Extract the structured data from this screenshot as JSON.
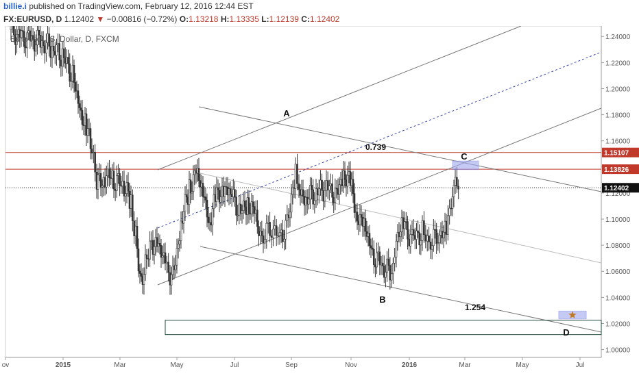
{
  "header": {
    "user": "billie.i",
    "published": " published on TradingView.com, February 12, 2016 12:44 EST"
  },
  "quote": {
    "symbol": "FX:EURUSD, D",
    "last": "1.12402",
    "change": "−0.00816 (−0.72%)",
    "o_label": "O:",
    "o": "1.13218",
    "h_label": "H:",
    "h": "1.13335",
    "l_label": "L:",
    "l": "1.12139",
    "c_label": "C:",
    "c": "1.12402"
  },
  "chart_data": {
    "type": "candlestick",
    "title": "Euro Fx/U.S. Dollar, D, FXCM",
    "ylim": [
      0.994,
      1.248
    ],
    "y_ticks": [
      "1.24000",
      "1.22000",
      "1.20000",
      "1.18000",
      "1.16000",
      "1.14000",
      "1.12000",
      "1.10000",
      "1.08000",
      "1.06000",
      "1.04000",
      "1.02000",
      "1.00000"
    ],
    "x_ticks": [
      "ov",
      "2015",
      "Mar",
      "May",
      "Jul",
      "Sep",
      "Nov",
      "2016",
      "Mar",
      "May",
      "Jul"
    ],
    "price_tags": [
      {
        "label": "1.15107",
        "value": 1.15107,
        "color": "#c0392b"
      },
      {
        "label": "1.13826",
        "value": 1.13826,
        "color": "#c0392b"
      },
      {
        "label": "1.12402",
        "value": 1.12402,
        "color": "#111111"
      }
    ],
    "annotations": [
      "A",
      "B",
      "C",
      "D",
      "0.739",
      "1.254"
    ],
    "series": [
      {
        "name": "EURUSD",
        "points": [
          [
            0,
            1.245
          ],
          [
            15,
            1.24
          ],
          [
            30,
            1.238
          ],
          [
            45,
            1.235
          ],
          [
            60,
            1.23
          ],
          [
            75,
            1.225
          ],
          [
            90,
            1.21
          ],
          [
            100,
            1.185
          ],
          [
            110,
            1.17
          ],
          [
            118,
            1.15
          ],
          [
            125,
            1.125
          ],
          [
            135,
            1.135
          ],
          [
            150,
            1.13
          ],
          [
            165,
            1.125
          ],
          [
            175,
            1.11
          ],
          [
            182,
            1.085
          ],
          [
            190,
            1.052
          ],
          [
            198,
            1.075
          ],
          [
            205,
            1.085
          ],
          [
            215,
            1.075
          ],
          [
            225,
            1.07
          ],
          [
            232,
            1.055
          ],
          [
            240,
            1.07
          ],
          [
            250,
            1.1
          ],
          [
            260,
            1.125
          ],
          [
            270,
            1.135
          ],
          [
            280,
            1.12
          ],
          [
            290,
            1.1
          ],
          [
            300,
            1.115
          ],
          [
            310,
            1.125
          ],
          [
            320,
            1.12
          ],
          [
            335,
            1.105
          ],
          [
            345,
            1.115
          ],
          [
            355,
            1.1
          ],
          [
            368,
            1.085
          ],
          [
            380,
            1.095
          ],
          [
            392,
            1.085
          ],
          [
            405,
            1.1
          ],
          [
            415,
            1.14
          ],
          [
            420,
            1.125
          ],
          [
            430,
            1.115
          ],
          [
            445,
            1.12
          ],
          [
            460,
            1.125
          ],
          [
            475,
            1.12
          ],
          [
            485,
            1.135
          ],
          [
            495,
            1.125
          ],
          [
            505,
            1.105
          ],
          [
            515,
            1.095
          ],
          [
            525,
            1.075
          ],
          [
            540,
            1.065
          ],
          [
            555,
            1.057
          ],
          [
            562,
            1.085
          ],
          [
            572,
            1.095
          ],
          [
            585,
            1.085
          ],
          [
            600,
            1.09
          ],
          [
            612,
            1.082
          ],
          [
            625,
            1.088
          ],
          [
            635,
            1.09
          ],
          [
            642,
            1.11
          ],
          [
            648,
            1.125
          ],
          [
            655,
            1.124
          ]
        ]
      }
    ]
  }
}
